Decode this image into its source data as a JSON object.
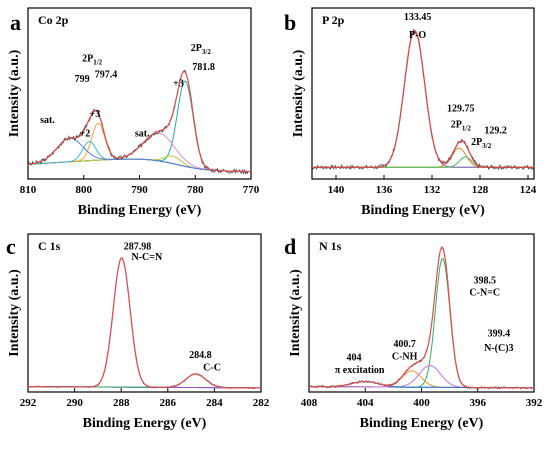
{
  "figure": {
    "panels_count": 4
  },
  "chart_data": [
    {
      "type": "line",
      "panel_label": "a",
      "element_label": "Co 2p",
      "xlabel": "Binding Energy (eV)",
      "ylabel": "Intensity (a.u.)",
      "xlim": [
        810,
        770
      ],
      "x_reversed": true,
      "xticks": [
        810,
        800,
        790,
        780,
        770
      ],
      "ylim": [
        0,
        1
      ],
      "y_ticks_shown": false,
      "noise_seed": 3,
      "noise_amp": 0.015,
      "background": {
        "type": "shirley",
        "start": 0.1,
        "end": 0.05,
        "step_center": 784,
        "step_width": 3,
        "mid_level": 0.16,
        "color": "#5a5a5a"
      },
      "peaks": [
        {
          "name": "+3",
          "center": 781.8,
          "fwhm": 3.3,
          "height": 0.58,
          "color": "#1fb0a2"
        },
        {
          "name": "sat.",
          "center": 786.5,
          "fwhm": 6.5,
          "height": 0.19,
          "color": "#d98fe0"
        },
        {
          "name": "+2",
          "center": 784.0,
          "fwhm": 3.5,
          "height": 0.05,
          "color": "#b5c83a"
        },
        {
          "name": "+3",
          "center": 797.4,
          "fwhm": 2.8,
          "height": 0.25,
          "color": "#f0a830"
        },
        {
          "name": "+2",
          "center": 799.0,
          "fwhm": 2.8,
          "height": 0.13,
          "color": "#3ab8e0"
        },
        {
          "name": "sat.",
          "center": 802.5,
          "fwhm": 5.5,
          "height": 0.16,
          "color": "#5b7fd8"
        }
      ],
      "envelope_color": "#e05050",
      "raw_color": "#444444",
      "annotations": [
        {
          "text": "799",
          "x": 800.3,
          "y": 0.66
        },
        {
          "text": "797.4",
          "x": 796.0,
          "y": 0.69
        },
        {
          "text": "+3",
          "x": 783.0,
          "y": 0.63
        },
        {
          "text": "+3",
          "x": 798.0,
          "y": 0.42
        },
        {
          "text": "+2",
          "x": 799.8,
          "y": 0.29
        },
        {
          "text": "sat.",
          "x": 806.5,
          "y": 0.38
        },
        {
          "text": "sat.",
          "x": 789.5,
          "y": 0.29
        },
        {
          "text": "781.8",
          "x": 778.5,
          "y": 0.74
        }
      ],
      "sublabels": [
        {
          "main": "2P",
          "sub": "1/2",
          "x": 798.5,
          "y": 0.8
        },
        {
          "main": "2P",
          "sub": "3/2",
          "x": 779.0,
          "y": 0.87
        }
      ]
    },
    {
      "type": "line",
      "panel_label": "b",
      "element_label": "P 2p",
      "xlabel": "Binding Energy (eV)",
      "ylabel": "Intensity (a.u.)",
      "xlim": [
        142,
        123.5
      ],
      "x_reversed": true,
      "xticks": [
        140,
        136,
        132,
        128,
        124
      ],
      "ylim": [
        0,
        1
      ],
      "y_ticks_shown": false,
      "noise_seed": 7,
      "noise_amp": 0.014,
      "background": {
        "type": "flat",
        "start": 0.08,
        "end": 0.08,
        "color": "#d4a020"
      },
      "peaks": [
        {
          "name": "P-O",
          "center": 133.45,
          "fwhm": 2.0,
          "height": 0.93,
          "color": "#6b66c8"
        },
        {
          "name": "2P1/2",
          "center": 129.75,
          "fwhm": 1.4,
          "height": 0.13,
          "color": "#f08030"
        },
        {
          "name": "2P3/2",
          "center": 129.2,
          "fwhm": 1.2,
          "height": 0.07,
          "color": "#40c060"
        }
      ],
      "envelope_color": "#e04848",
      "raw_color": "#444444",
      "annotations": [
        {
          "text": "133.45",
          "x": 133.2,
          "y": 1.08
        },
        {
          "text": "P-O",
          "x": 133.2,
          "y": 0.96
        },
        {
          "text": "129.75",
          "x": 129.6,
          "y": 0.46
        },
        {
          "text": "129.2",
          "x": 126.7,
          "y": 0.31
        }
      ],
      "sublabels": [
        {
          "main": "2P",
          "sub": "1/2",
          "x": 129.6,
          "y": 0.35
        },
        {
          "main": "2P",
          "sub": "3/2",
          "x": 127.9,
          "y": 0.23
        }
      ]
    },
    {
      "type": "line",
      "panel_label": "c",
      "element_label": "C 1s",
      "xlabel": "Binding Energy (eV)",
      "ylabel": "Intensity (a.u.)",
      "xlim": [
        292,
        282
      ],
      "x_reversed": true,
      "xticks": [
        292,
        290,
        288,
        286,
        284,
        282
      ],
      "ylim": [
        0,
        1
      ],
      "y_ticks_shown": false,
      "noise_seed": 11,
      "noise_amp": 0.005,
      "background": {
        "type": "flat",
        "start": 0.04,
        "end": 0.03,
        "color": "#3060c8"
      },
      "peaks": [
        {
          "name": "N-C=N",
          "center": 287.98,
          "fwhm": 0.85,
          "height": 0.95,
          "color": "#a050d0"
        },
        {
          "name": "C-C",
          "center": 284.8,
          "fwhm": 1.0,
          "height": 0.1,
          "color": "#30a060"
        }
      ],
      "envelope_color": "#e05050",
      "raw_color": "#444444",
      "annotations": [
        {
          "text": "287.98",
          "x": 287.3,
          "y": 1.05
        },
        {
          "text": "N-C=N",
          "x": 286.9,
          "y": 0.97
        },
        {
          "text": "284.8",
          "x": 284.6,
          "y": 0.25
        },
        {
          "text": "C-C",
          "x": 284.1,
          "y": 0.16
        }
      ],
      "sublabels": []
    },
    {
      "type": "line",
      "panel_label": "d",
      "element_label": "N 1s",
      "xlabel": "Binding Energy (eV)",
      "ylabel": "Intensity (a.u.)",
      "xlim": [
        408,
        392
      ],
      "x_reversed": true,
      "xticks": [
        408,
        404,
        400,
        396,
        392
      ],
      "ylim": [
        0,
        1
      ],
      "y_ticks_shown": false,
      "noise_seed": 19,
      "noise_amp": 0.008,
      "background": {
        "type": "flat",
        "start": 0.04,
        "end": 0.03,
        "color": "#20b0c0"
      },
      "peaks": [
        {
          "name": "C-N=C",
          "center": 398.5,
          "fwhm": 1.2,
          "height": 0.95,
          "color": "#30b060"
        },
        {
          "name": "C-NH",
          "center": 400.7,
          "fwhm": 1.6,
          "height": 0.12,
          "color": "#f09030"
        },
        {
          "name": "N-(C)3",
          "center": 399.4,
          "fwhm": 1.8,
          "height": 0.16,
          "color": "#c070e0"
        },
        {
          "name": "π excitation",
          "center": 404.0,
          "fwhm": 2.2,
          "height": 0.04,
          "color": "#3070d0"
        }
      ],
      "envelope_color": "#e05050",
      "raw_color": "#444444",
      "annotations": [
        {
          "text": "398.5",
          "x": 395.5,
          "y": 0.8
        },
        {
          "text": "C-N=C",
          "x": 395.5,
          "y": 0.71
        },
        {
          "text": "399.4",
          "x": 394.5,
          "y": 0.41
        },
        {
          "text": "N-(C)3",
          "x": 394.5,
          "y": 0.3
        },
        {
          "text": "400.7",
          "x": 401.2,
          "y": 0.33
        },
        {
          "text": "C-NH",
          "x": 401.2,
          "y": 0.24
        },
        {
          "text": "404",
          "x": 404.8,
          "y": 0.23
        },
        {
          "text": "π excitation",
          "x": 404.4,
          "y": 0.14
        }
      ],
      "sublabels": []
    }
  ]
}
